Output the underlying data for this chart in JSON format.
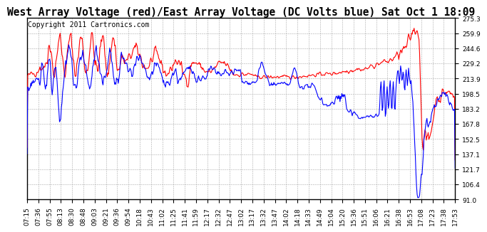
{
  "title": "West Array Voltage (red)/East Array Voltage (DC Volts blue) Sat Oct 1 18:09",
  "copyright": "Copyright 2011 Cartronics.com",
  "background_color": "#ffffff",
  "plot_bg_color": "#ffffff",
  "grid_color": "#aaaaaa",
  "ylim": [
    91.0,
    275.3
  ],
  "yticks": [
    91.0,
    106.4,
    121.7,
    137.1,
    152.5,
    167.8,
    183.2,
    198.5,
    213.9,
    229.2,
    244.6,
    259.9,
    275.3
  ],
  "xtick_labels": [
    "07:15",
    "07:36",
    "07:55",
    "08:13",
    "08:30",
    "08:48",
    "09:03",
    "09:21",
    "09:36",
    "09:54",
    "10:18",
    "10:43",
    "11:02",
    "11:25",
    "11:41",
    "11:59",
    "12:17",
    "12:32",
    "12:47",
    "13:02",
    "13:17",
    "13:32",
    "13:47",
    "14:02",
    "14:18",
    "14:33",
    "14:49",
    "15:04",
    "15:20",
    "15:36",
    "15:51",
    "16:06",
    "16:21",
    "16:38",
    "16:53",
    "17:08",
    "17:23",
    "17:38",
    "17:53"
  ],
  "red_color": "#ff0000",
  "blue_color": "#0000ff",
  "title_fontsize": 10.5,
  "copyright_fontsize": 7,
  "tick_fontsize": 6.5,
  "line_width": 0.8
}
